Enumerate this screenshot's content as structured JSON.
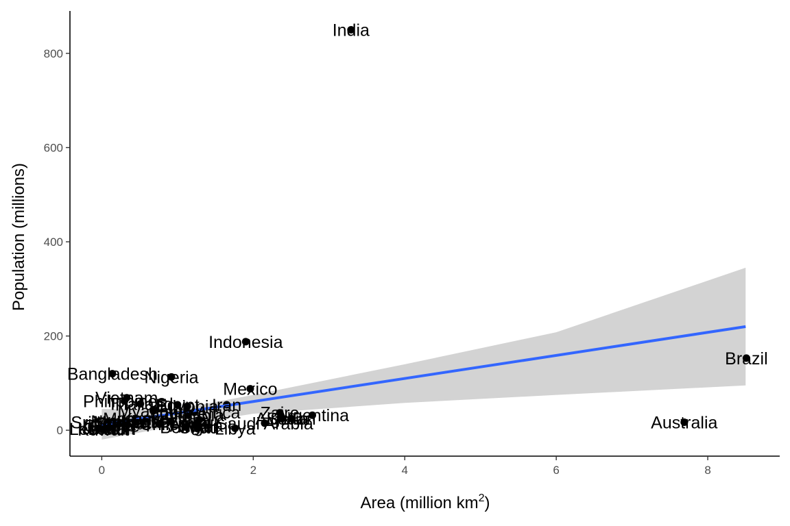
{
  "chart_data": {
    "type": "scatter",
    "title": "",
    "xlabel": "Area (million km",
    "xlabel_superscript": "2",
    "xlabel_suffix": ")",
    "ylabel": "Population (millions)",
    "xlim": [
      -0.42,
      8.95
    ],
    "ylim": [
      -55,
      890
    ],
    "x_ticks": [
      0,
      2,
      4,
      6,
      8
    ],
    "y_ticks": [
      0,
      200,
      400,
      600,
      800
    ],
    "x_tick_labels": [
      "0",
      "2",
      "4",
      "6",
      "8"
    ],
    "y_tick_labels": [
      "0",
      "200",
      "400",
      "600",
      "800"
    ],
    "grid": false,
    "legend": "none",
    "colors": {
      "points": "#000000",
      "trend_line": "#3366FF",
      "confidence_band": "#d3d3d3",
      "axis": "#000000",
      "tick_text": "#4d4d4d"
    },
    "trend": {
      "method": "linear",
      "x_range": [
        0.0,
        8.5
      ],
      "y_at_x_start": 12,
      "y_at_x_end": 220,
      "band_upper": [
        [
          0,
          45
        ],
        [
          1,
          45
        ],
        [
          2,
          75
        ],
        [
          4,
          140
        ],
        [
          6,
          208
        ],
        [
          8.5,
          345
        ]
      ],
      "band_lower": [
        [
          0,
          -20
        ],
        [
          1,
          10
        ],
        [
          2,
          35
        ],
        [
          4,
          58
        ],
        [
          6,
          75
        ],
        [
          8.5,
          95
        ]
      ]
    },
    "points": [
      {
        "label": "India",
        "x": 3.29,
        "y": 850
      },
      {
        "label": "Indonesia",
        "x": 1.9,
        "y": 188
      },
      {
        "label": "Brazil",
        "x": 8.51,
        "y": 153
      },
      {
        "label": "Bangladesh",
        "x": 0.14,
        "y": 120
      },
      {
        "label": "Nigeria",
        "x": 0.92,
        "y": 113
      },
      {
        "label": "Mexico",
        "x": 1.96,
        "y": 88
      },
      {
        "label": "Vietnam",
        "x": 0.33,
        "y": 69
      },
      {
        "label": "Philippines",
        "x": 0.3,
        "y": 62
      },
      {
        "label": "Ethiopia",
        "x": 1.13,
        "y": 51
      },
      {
        "label": "Thailand",
        "x": 0.51,
        "y": 56
      },
      {
        "label": "Egypt",
        "x": 1.0,
        "y": 54
      },
      {
        "label": "Iran",
        "x": 1.65,
        "y": 54
      },
      {
        "label": "Myanmar",
        "x": 0.68,
        "y": 41
      },
      {
        "label": "South Africa",
        "x": 1.22,
        "y": 38
      },
      {
        "label": "Colombia",
        "x": 1.14,
        "y": 32
      },
      {
        "label": "Zaire",
        "x": 2.35,
        "y": 37
      },
      {
        "label": "Algeria",
        "x": 2.38,
        "y": 25
      },
      {
        "label": "Sudan",
        "x": 2.5,
        "y": 25
      },
      {
        "label": "Argentina",
        "x": 2.78,
        "y": 32
      },
      {
        "label": "Saudi Arabia",
        "x": 2.15,
        "y": 15
      },
      {
        "label": "Australia",
        "x": 7.69,
        "y": 17
      },
      {
        "label": "Libya",
        "x": 1.76,
        "y": 4
      },
      {
        "label": "Morocco",
        "x": 0.45,
        "y": 25
      },
      {
        "label": "Kenya",
        "x": 0.58,
        "y": 24
      },
      {
        "label": "Peru",
        "x": 1.29,
        "y": 22
      },
      {
        "label": "Venezuela",
        "x": 0.91,
        "y": 19
      },
      {
        "label": "Malaysia",
        "x": 0.33,
        "y": 18
      },
      {
        "label": "Iraq",
        "x": 0.44,
        "y": 18
      },
      {
        "label": "Nepal",
        "x": 0.15,
        "y": 19
      },
      {
        "label": "Sri Lanka",
        "x": 0.07,
        "y": 17
      },
      {
        "label": "Ghana",
        "x": 0.24,
        "y": 15
      },
      {
        "label": "Syria",
        "x": 0.19,
        "y": 13
      },
      {
        "label": "Chile",
        "x": 0.76,
        "y": 13
      },
      {
        "label": "Cuba",
        "x": 0.11,
        "y": 11
      },
      {
        "label": "Greece",
        "x": 0.13,
        "y": 10
      },
      {
        "label": "Israel",
        "x": 0.02,
        "y": 5
      },
      {
        "label": "Jordan",
        "x": 0.09,
        "y": 4
      },
      {
        "label": "Lebanon",
        "x": 0.01,
        "y": 3
      },
      {
        "label": "Kuwait",
        "x": 0.02,
        "y": 2
      },
      {
        "label": "Bolivia",
        "x": 1.1,
        "y": 7
      },
      {
        "label": "Mali",
        "x": 1.24,
        "y": 9
      },
      {
        "label": "Niger",
        "x": 1.27,
        "y": 8
      },
      {
        "label": "Chad",
        "x": 1.28,
        "y": 6
      },
      {
        "label": "Angola",
        "x": 1.25,
        "y": 10
      }
    ]
  }
}
